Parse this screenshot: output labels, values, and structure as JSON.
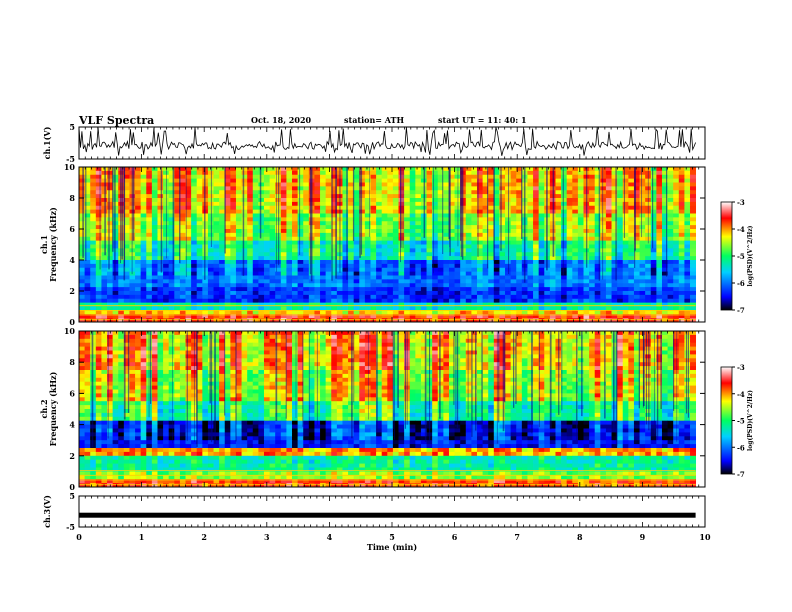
{
  "header": {
    "title": "VLF Spectra",
    "date": "Oct. 18, 2020",
    "station": "station= ATH",
    "start": "start UT =  11: 40: 1"
  },
  "chart_data": [
    {
      "type": "line",
      "panel": "ch1-waveform",
      "ylabel": "ch.1(V)",
      "ylim": [
        -5,
        5
      ],
      "yticks": [
        "5",
        "-5"
      ],
      "description_values": {
        "baseline": -0.8,
        "typical_range": [
          -2.5,
          1.5
        ],
        "spikes_up_to": 5
      },
      "x_range_min": [
        0,
        9.85
      ]
    },
    {
      "type": "heatmap",
      "panel": "ch1-spectrogram",
      "ylabel": "ch.1\nFrequency (kHz)",
      "ylim": [
        0,
        10
      ],
      "yticks": [
        "0",
        "2",
        "4",
        "6",
        "8",
        "10"
      ],
      "bands": [
        {
          "from_khz": 0,
          "to_khz": 0.4,
          "level": -3.6
        },
        {
          "from_khz": 0.4,
          "to_khz": 0.8,
          "level": -4.2
        },
        {
          "from_khz": 0.8,
          "to_khz": 1.2,
          "level": -5.3
        },
        {
          "from_khz": 1.2,
          "to_khz": 2.2,
          "level": -6.3
        },
        {
          "from_khz": 2.2,
          "to_khz": 4.0,
          "level": -6.0
        },
        {
          "from_khz": 4.0,
          "to_khz": 5.2,
          "level": -5.2
        },
        {
          "from_khz": 5.2,
          "to_khz": 7.0,
          "level": -4.6
        },
        {
          "from_khz": 7.0,
          "to_khz": 10.0,
          "level": -4.2
        }
      ],
      "colorbar": {
        "label": "log(PSD)(V^2/Hz)",
        "range": [
          -7,
          -3
        ],
        "ticks": [
          "-3",
          "-4",
          "-5",
          "-6",
          "-7"
        ]
      }
    },
    {
      "type": "heatmap",
      "panel": "ch2-spectrogram",
      "ylabel": "ch.2\nFrequency (kHz)",
      "ylim": [
        0,
        10
      ],
      "yticks": [
        "0",
        "2",
        "4",
        "6",
        "8",
        "10"
      ],
      "bands": [
        {
          "from_khz": 0,
          "to_khz": 0.4,
          "level": -3.7
        },
        {
          "from_khz": 0.4,
          "to_khz": 1.0,
          "level": -4.6
        },
        {
          "from_khz": 1.0,
          "to_khz": 2.0,
          "level": -5.2
        },
        {
          "from_khz": 2.0,
          "to_khz": 2.5,
          "level": -4.0
        },
        {
          "from_khz": 2.5,
          "to_khz": 4.2,
          "level": -6.4
        },
        {
          "from_khz": 4.2,
          "to_khz": 5.5,
          "level": -5.0
        },
        {
          "from_khz": 5.5,
          "to_khz": 7.5,
          "level": -4.4
        },
        {
          "from_khz": 7.5,
          "to_khz": 10.0,
          "level": -4.1
        }
      ],
      "colorbar": {
        "label": "log(PSD)(V^2/Hz)",
        "range": [
          -7,
          -3
        ],
        "ticks": [
          "-3",
          "-4",
          "-5",
          "-6",
          "-7"
        ]
      }
    },
    {
      "type": "line",
      "panel": "ch3-waveform",
      "ylabel": "ch.3(V)",
      "ylim": [
        -5,
        5
      ],
      "yticks": [
        "5",
        "-5"
      ],
      "description_values": {
        "baseline": -1.2,
        "thickness_v": 0.7
      },
      "x_range_min": [
        0,
        9.85
      ]
    }
  ],
  "xaxis": {
    "label": "Time (min)",
    "ticks": [
      "0",
      "1",
      "2",
      "3",
      "4",
      "5",
      "6",
      "7",
      "8",
      "9",
      "10"
    ],
    "range": [
      0,
      10
    ]
  },
  "colors": {
    "scale": [
      "#00008b",
      "#0000ff",
      "#00c8ff",
      "#00ff80",
      "#ffff00",
      "#ff8000",
      "#ff0000",
      "#ffffff"
    ]
  }
}
